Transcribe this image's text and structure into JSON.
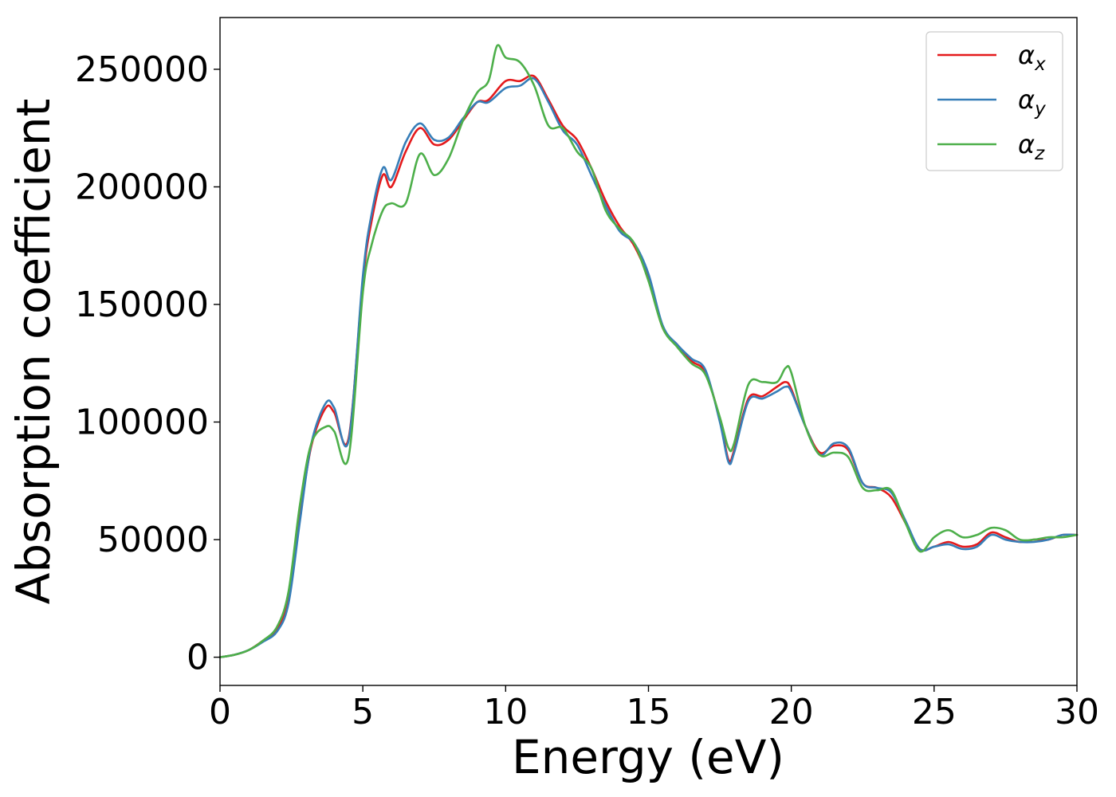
{
  "chart_data": {
    "type": "line",
    "title": "",
    "xlabel": "Energy (eV)",
    "ylabel": "Absorption coefficient",
    "xlim": [
      0,
      30
    ],
    "ylim": [
      -12000,
      272000
    ],
    "xticks": [
      0,
      5,
      10,
      15,
      20,
      25,
      30
    ],
    "yticks": [
      0,
      50000,
      100000,
      150000,
      200000,
      250000
    ],
    "xtick_labels": [
      "0",
      "5",
      "10",
      "15",
      "20",
      "25",
      "30"
    ],
    "ytick_labels": [
      "0",
      "50000",
      "100000",
      "150000",
      "200000",
      "250000"
    ],
    "grid": false,
    "legend_position": "top-right",
    "series": [
      {
        "name": "α",
        "subscript": "x",
        "color": "#e41a1c",
        "x": [
          0,
          0.5,
          1.0,
          1.5,
          2.0,
          2.4,
          2.8,
          3.2,
          3.7,
          4.0,
          4.5,
          5.0,
          5.3,
          5.7,
          6.0,
          6.5,
          7.0,
          7.5,
          8.0,
          8.5,
          9.0,
          9.4,
          10.0,
          10.5,
          11.0,
          11.5,
          12.0,
          12.5,
          13.0,
          13.5,
          14.0,
          14.5,
          15.0,
          15.5,
          16.0,
          16.5,
          17.0,
          17.5,
          17.8,
          18.0,
          18.5,
          19.0,
          19.5,
          19.8,
          20.0,
          20.5,
          21.0,
          21.5,
          22.0,
          22.5,
          23.0,
          23.5,
          24.0,
          24.5,
          25.0,
          25.5,
          26.0,
          26.5,
          27.0,
          27.5,
          28.0,
          28.5,
          29.0,
          29.5,
          30.0
        ],
        "values": [
          0,
          1000,
          3000,
          7000,
          12000,
          25000,
          60000,
          90000,
          106000,
          104000,
          93000,
          160000,
          185000,
          205000,
          200000,
          215000,
          225000,
          218000,
          220000,
          228000,
          236000,
          237000,
          245000,
          245000,
          247000,
          237000,
          226000,
          220000,
          208000,
          194000,
          183000,
          175000,
          161000,
          140000,
          133000,
          126000,
          121000,
          101000,
          84000,
          88000,
          110000,
          111000,
          115000,
          117000,
          114000,
          98000,
          87000,
          90000,
          88000,
          74000,
          72000,
          68000,
          57000,
          46000,
          47000,
          49000,
          47000,
          48000,
          53000,
          51000,
          49000,
          50000,
          50000,
          52000,
          52000
        ]
      },
      {
        "name": "α",
        "subscript": "y",
        "color": "#377eb8",
        "x": [
          0,
          0.5,
          1.0,
          1.5,
          2.0,
          2.4,
          2.8,
          3.2,
          3.7,
          4.0,
          4.5,
          5.0,
          5.3,
          5.7,
          6.0,
          6.5,
          7.0,
          7.5,
          8.0,
          8.5,
          9.0,
          9.4,
          10.0,
          10.5,
          11.0,
          11.5,
          12.0,
          12.5,
          13.0,
          13.5,
          14.0,
          14.5,
          15.0,
          15.5,
          16.0,
          16.5,
          17.0,
          17.5,
          17.8,
          18.0,
          18.5,
          19.0,
          19.5,
          19.8,
          20.0,
          20.5,
          21.0,
          21.5,
          22.0,
          22.5,
          23.0,
          23.5,
          24.0,
          24.5,
          25.0,
          25.5,
          26.0,
          26.5,
          27.0,
          27.5,
          28.0,
          28.5,
          29.0,
          29.5,
          30.0
        ],
        "values": [
          0,
          1000,
          3000,
          6500,
          11000,
          23000,
          58000,
          91000,
          108000,
          106000,
          92000,
          162000,
          188000,
          208000,
          203000,
          219000,
          227000,
          220000,
          221000,
          229000,
          236000,
          236000,
          242000,
          243000,
          246000,
          236000,
          224000,
          218000,
          205000,
          192000,
          181000,
          176000,
          163000,
          141000,
          133000,
          127000,
          122000,
          100000,
          83000,
          87000,
          109000,
          110000,
          113000,
          115000,
          113000,
          98000,
          86000,
          91000,
          89000,
          74000,
          72000,
          70000,
          58000,
          46000,
          47000,
          48000,
          46000,
          47000,
          52000,
          50000,
          49000,
          49000,
          50000,
          52000,
          52000
        ]
      },
      {
        "name": "α",
        "subscript": "z",
        "color": "#4daf4a",
        "x": [
          0,
          0.5,
          1.0,
          1.5,
          2.0,
          2.4,
          2.8,
          3.2,
          3.7,
          4.0,
          4.5,
          5.0,
          5.3,
          5.7,
          6.0,
          6.5,
          7.0,
          7.5,
          8.0,
          8.5,
          9.0,
          9.4,
          9.7,
          10.0,
          10.5,
          11.0,
          11.5,
          12.0,
          12.5,
          13.0,
          13.5,
          14.0,
          14.5,
          15.0,
          15.5,
          16.0,
          16.5,
          17.0,
          17.5,
          17.8,
          18.0,
          18.5,
          19.0,
          19.5,
          19.8,
          20.0,
          20.5,
          21.0,
          21.5,
          22.0,
          22.5,
          23.0,
          23.5,
          24.0,
          24.5,
          25.0,
          25.5,
          26.0,
          26.5,
          27.0,
          27.5,
          28.0,
          28.5,
          29.0,
          29.5,
          30.0
        ],
        "values": [
          0,
          1000,
          3000,
          7000,
          13000,
          28000,
          65000,
          91000,
          98000,
          96000,
          85000,
          155000,
          175000,
          190000,
          193000,
          193000,
          214000,
          205000,
          212000,
          228000,
          240000,
          245000,
          260000,
          255000,
          253000,
          243000,
          226000,
          225000,
          215000,
          208000,
          190000,
          182000,
          176000,
          160000,
          140000,
          132000,
          125000,
          120000,
          102000,
          89000,
          91000,
          116000,
          117000,
          117000,
          123000,
          121000,
          98000,
          86000,
          87000,
          85000,
          72000,
          71000,
          71000,
          57000,
          45000,
          51000,
          54000,
          51000,
          52000,
          55000,
          54000,
          50000,
          50000,
          51000,
          51000,
          52000
        ]
      }
    ]
  }
}
